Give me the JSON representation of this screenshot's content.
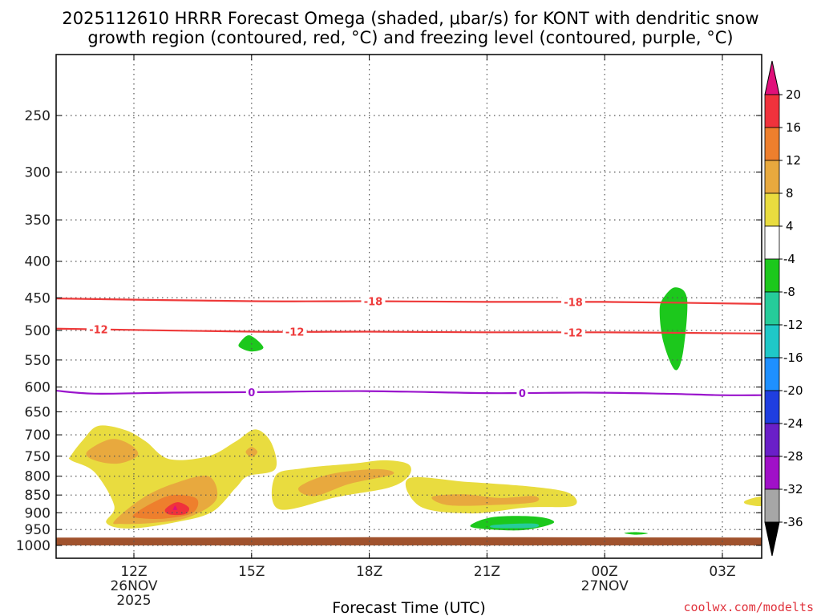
{
  "chart_data": {
    "type": "time-height cross section (shaded + contoured)",
    "title_line1": "2025112610 HRRR Forecast Omega (shaded, μbar/s) for KONT with dendritic snow",
    "title_line2": "growth region (contoured, red, °C) and freezing level (contoured, purple, °C)",
    "xlabel": "Forecast Time (UTC)",
    "credit": "coolwx.com/modelts",
    "pressure_ticks": [
      250,
      300,
      350,
      400,
      450,
      500,
      550,
      600,
      650,
      700,
      750,
      800,
      850,
      900,
      950,
      1000
    ],
    "ylim_hpa": [
      200,
      1000
    ],
    "time_ticks": [
      {
        "label": "12Z",
        "hour": 12,
        "sub": "26NOV",
        "sub2": "2025"
      },
      {
        "label": "15Z",
        "hour": 15,
        "sub": "",
        "sub2": ""
      },
      {
        "label": "18Z",
        "hour": 18,
        "sub": "",
        "sub2": ""
      },
      {
        "label": "21Z",
        "hour": 21,
        "sub": "",
        "sub2": ""
      },
      {
        "label": "00Z",
        "hour": 24,
        "sub": "27NOV",
        "sub2": ""
      },
      {
        "label": "03Z",
        "hour": 27,
        "sub": "",
        "sub2": ""
      }
    ],
    "xlim_hours_from_26NOV_00Z": [
      10,
      28
    ],
    "colorbar": {
      "unit": "μbar/s",
      "label_values": [
        20,
        16,
        12,
        8,
        4,
        -4,
        -8,
        -12,
        -16,
        -20,
        -24,
        -28,
        -32,
        -36
      ],
      "bins": [
        {
          "from": 16,
          "to": 20,
          "color": "#f0323c"
        },
        {
          "from": 12,
          "to": 16,
          "color": "#ee7f2d"
        },
        {
          "from": 8,
          "to": 12,
          "color": "#e8a93e"
        },
        {
          "from": 4,
          "to": 8,
          "color": "#e9dc3f"
        },
        {
          "from": -4,
          "to": 4,
          "color": "#ffffff"
        },
        {
          "from": -8,
          "to": -4,
          "color": "#1cc81c"
        },
        {
          "from": -12,
          "to": -8,
          "color": "#26cc9a"
        },
        {
          "from": -16,
          "to": -12,
          "color": "#1fc8c8"
        },
        {
          "from": -20,
          "to": -16,
          "color": "#1e90ff"
        },
        {
          "from": -24,
          "to": -20,
          "color": "#1f3ee0"
        },
        {
          "from": -28,
          "to": -24,
          "color": "#6a1fc8"
        },
        {
          "from": -32,
          "to": -28,
          "color": "#a010c8"
        },
        {
          "from": -36,
          "to": -32,
          "color": "#a6a6a6"
        }
      ],
      "above_color": "#e0107a",
      "below_color": "#000000"
    },
    "contours": [
      {
        "name": "dendritic growth -18C",
        "color": "#ee3a3a",
        "points_hour_hpa": [
          [
            10,
            451
          ],
          [
            15,
            455
          ],
          [
            18,
            455
          ],
          [
            21,
            456
          ],
          [
            24,
            456
          ],
          [
            28,
            459
          ]
        ],
        "labels": [
          {
            "text": "-18",
            "hour": 18.1
          },
          {
            "text": "-18",
            "hour": 23.2
          }
        ]
      },
      {
        "name": "dendritic growth -12C",
        "color": "#ee3a3a",
        "points_hour_hpa": [
          [
            10,
            497
          ],
          [
            15,
            502
          ],
          [
            18,
            502
          ],
          [
            21,
            503
          ],
          [
            24,
            503
          ],
          [
            28,
            505
          ]
        ],
        "labels": [
          {
            "text": "-12",
            "hour": 11.1
          },
          {
            "text": "-12",
            "hour": 16.1
          },
          {
            "text": "-12",
            "hour": 23.2
          }
        ]
      },
      {
        "name": "freezing level 0C",
        "color": "#9a14cc",
        "points_hour_hpa": [
          [
            10,
            607
          ],
          [
            11,
            613
          ],
          [
            13,
            611
          ],
          [
            15,
            610
          ],
          [
            17.9,
            608
          ],
          [
            21,
            612
          ],
          [
            23.5,
            611
          ],
          [
            25.5,
            613
          ],
          [
            27,
            616
          ],
          [
            28,
            616
          ]
        ],
        "labels": [
          {
            "text": "0",
            "hour": 15.0
          },
          {
            "text": "0",
            "hour": 21.9
          }
        ]
      }
    ],
    "shaded_regions": [
      {
        "bin": "4 to 8",
        "region": "upward motion 11Z-16Z",
        "hours_hpa": [
          [
            10.4,
            748
          ],
          [
            10.7,
            712
          ],
          [
            11.1,
            680
          ],
          [
            11.8,
            690
          ],
          [
            12.3,
            715
          ],
          [
            12.9,
            757
          ],
          [
            13.9,
            750
          ],
          [
            14.6,
            715
          ],
          [
            15.1,
            688
          ],
          [
            15.5,
            718
          ],
          [
            15.6,
            782
          ],
          [
            14.9,
            800
          ],
          [
            14.6,
            830
          ],
          [
            14.0,
            897
          ],
          [
            13.1,
            927
          ],
          [
            11.9,
            947
          ],
          [
            11.3,
            930
          ],
          [
            11.5,
            880
          ],
          [
            11.0,
            790
          ],
          [
            10.4,
            760
          ]
        ]
      },
      {
        "bin": "8 to 12",
        "region": "11Z-12Z",
        "hours_hpa": [
          [
            10.8,
            740
          ],
          [
            11.4,
            710
          ],
          [
            11.9,
            722
          ],
          [
            12.1,
            748
          ],
          [
            11.6,
            768
          ],
          [
            11.0,
            760
          ]
        ]
      },
      {
        "bin": "8 to 12",
        "region": "12Z-14Z",
        "hours_hpa": [
          [
            11.5,
            925
          ],
          [
            12.2,
            860
          ],
          [
            13.0,
            820
          ],
          [
            13.9,
            800
          ],
          [
            14.1,
            862
          ],
          [
            13.4,
            913
          ],
          [
            12.5,
            930
          ],
          [
            11.7,
            933
          ]
        ]
      },
      {
        "bin": "12 to 16",
        "region": "13Z",
        "hours_hpa": [
          [
            12.0,
            905
          ],
          [
            12.5,
            870
          ],
          [
            13.0,
            850
          ],
          [
            13.6,
            860
          ],
          [
            13.5,
            900
          ],
          [
            12.8,
            917
          ],
          [
            12.1,
            915
          ]
        ]
      },
      {
        "bin": "16 to 20",
        "region": "13Z",
        "hours_hpa": [
          [
            12.8,
            890
          ],
          [
            13.1,
            870
          ],
          [
            13.4,
            885
          ],
          [
            13.3,
            904
          ],
          [
            12.9,
            905
          ]
        ]
      },
      {
        "bin": "8 to 12",
        "region": "15Z",
        "hours_hpa": [
          [
            14.85,
            740
          ],
          [
            15.0,
            728
          ],
          [
            15.15,
            740
          ],
          [
            15.0,
            752
          ]
        ]
      },
      {
        "bin": "4 to 8",
        "region": "16Z-19Z",
        "hours_hpa": [
          [
            15.6,
            800
          ],
          [
            16.3,
            780
          ],
          [
            17.6,
            768
          ],
          [
            18.4,
            760
          ],
          [
            19.0,
            770
          ],
          [
            19.0,
            800
          ],
          [
            18.5,
            830
          ],
          [
            17.2,
            855
          ],
          [
            15.7,
            890
          ]
        ]
      },
      {
        "bin": "8 to 12",
        "region": "16Z-19Z",
        "hours_hpa": [
          [
            16.2,
            830
          ],
          [
            17.0,
            795
          ],
          [
            18.2,
            782
          ],
          [
            18.6,
            795
          ],
          [
            17.5,
            820
          ],
          [
            16.6,
            853
          ]
        ]
      },
      {
        "bin": "4 to 8",
        "region": "19Z-23Z",
        "hours_hpa": [
          [
            19.0,
            806
          ],
          [
            20.5,
            815
          ],
          [
            22.2,
            828
          ],
          [
            23.1,
            845
          ],
          [
            23.2,
            880
          ],
          [
            22.0,
            885
          ],
          [
            20.6,
            902
          ],
          [
            19.3,
            882
          ]
        ]
      },
      {
        "bin": "8 to 12",
        "region": "19Z-23Z",
        "hours_hpa": [
          [
            19.6,
            855
          ],
          [
            20.4,
            848
          ],
          [
            21.3,
            858
          ],
          [
            22.2,
            853
          ],
          [
            22.2,
            870
          ],
          [
            21.1,
            878
          ],
          [
            20.0,
            878
          ]
        ]
      },
      {
        "bin": "4 to 8",
        "region": "03Z edge",
        "hours_hpa": [
          [
            27.6,
            865
          ],
          [
            28.0,
            855
          ],
          [
            28.0,
            880
          ],
          [
            27.6,
            875
          ]
        ]
      },
      {
        "bin": "-8 to -4",
        "region": "15Z",
        "hours_hpa": [
          [
            14.7,
            520
          ],
          [
            14.95,
            508
          ],
          [
            15.3,
            528
          ],
          [
            15.0,
            535
          ],
          [
            14.7,
            528
          ]
        ]
      },
      {
        "bin": "-8 to -4",
        "region": "02Z",
        "hours_hpa": [
          [
            25.5,
            450
          ],
          [
            25.8,
            435
          ],
          [
            26.1,
            452
          ],
          [
            26.0,
            535
          ],
          [
            25.8,
            568
          ],
          [
            25.5,
            520
          ],
          [
            25.4,
            470
          ]
        ]
      },
      {
        "bin": "-8 to -4",
        "region": "21Z-22Z",
        "hours_hpa": [
          [
            20.6,
            935
          ],
          [
            21.2,
            912
          ],
          [
            22.3,
            912
          ],
          [
            22.7,
            930
          ],
          [
            21.9,
            952
          ],
          [
            20.8,
            947
          ]
        ]
      },
      {
        "bin": "-12 to -8",
        "region": "21Z-22Z",
        "hours_hpa": [
          [
            21.2,
            936
          ],
          [
            22.2,
            932
          ],
          [
            22.2,
            944
          ],
          [
            21.2,
            945
          ]
        ]
      },
      {
        "bin": "-8 to -4",
        "region": "01Z",
        "hours_hpa": [
          [
            24.5,
            961
          ],
          [
            24.8,
            958
          ],
          [
            25.1,
            962
          ],
          [
            24.8,
            966
          ]
        ]
      },
      {
        "bin": "terrain",
        "region": "surface",
        "hours_hpa": [
          [
            10,
            975
          ],
          [
            14,
            975
          ],
          [
            18,
            974
          ],
          [
            22,
            974
          ],
          [
            28,
            975
          ],
          [
            28,
            1000
          ],
          [
            10,
            1000
          ]
        ]
      }
    ],
    "terrain_color": "#a0522d"
  }
}
